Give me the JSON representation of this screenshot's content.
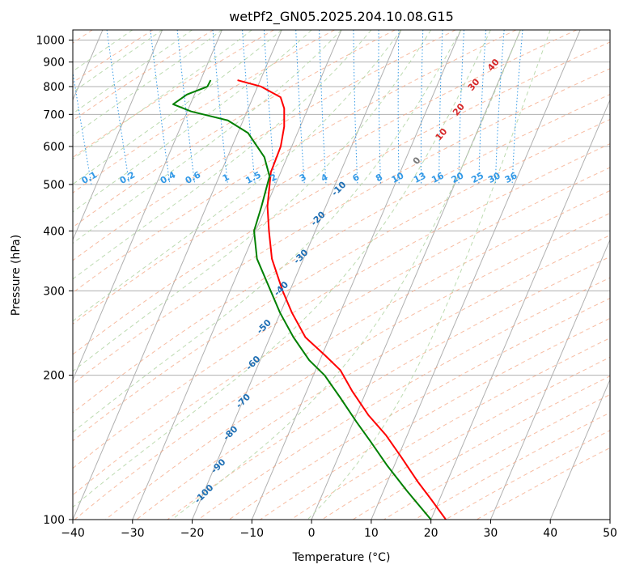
{
  "chart_data": {
    "type": "line",
    "diagram": "skew-T log-P",
    "title": "wetPf2_GN05.2025.204.10.08.G15",
    "xlabel": "Temperature (°C)",
    "ylabel": "Pressure (hPa)",
    "xlim": [
      -40,
      50
    ],
    "ylim": [
      1050,
      100
    ],
    "y_scale": "log",
    "grid": true,
    "x_ticks": [
      -40,
      -30,
      -20,
      -10,
      0,
      10,
      20,
      30,
      40,
      50
    ],
    "y_ticks": [
      100,
      200,
      300,
      400,
      500,
      600,
      700,
      800,
      900,
      1000
    ],
    "series": [
      {
        "role": "temperature",
        "color": "#ff0000",
        "points": [
          {
            "p": 825,
            "t": -16.0
          },
          {
            "p": 800,
            "t": -12.5
          },
          {
            "p": 760,
            "t": -10.0
          },
          {
            "p": 720,
            "t": -10.2
          },
          {
            "p": 660,
            "t": -11.5
          },
          {
            "p": 600,
            "t": -13.5
          },
          {
            "p": 530,
            "t": -17.0
          },
          {
            "p": 450,
            "t": -20.0
          },
          {
            "p": 400,
            "t": -21.5
          },
          {
            "p": 350,
            "t": -23.0
          },
          {
            "p": 300,
            "t": -23.5
          },
          {
            "p": 270,
            "t": -23.5
          },
          {
            "p": 240,
            "t": -23.0
          },
          {
            "p": 220,
            "t": -21.0
          },
          {
            "p": 205,
            "t": -19.5
          },
          {
            "p": 185,
            "t": -19.0
          },
          {
            "p": 165,
            "t": -18.0
          },
          {
            "p": 150,
            "t": -16.5
          },
          {
            "p": 135,
            "t": -15.5
          },
          {
            "p": 120,
            "t": -14.5
          },
          {
            "p": 110,
            "t": -13.5
          },
          {
            "p": 100,
            "t": -12.5
          }
        ]
      },
      {
        "role": "dewpoint",
        "color": "#008000",
        "points": [
          {
            "p": 825,
            "t": -20.5
          },
          {
            "p": 800,
            "t": -21.5
          },
          {
            "p": 770,
            "t": -25.5
          },
          {
            "p": 735,
            "t": -28.5
          },
          {
            "p": 710,
            "t": -26.0
          },
          {
            "p": 680,
            "t": -20.5
          },
          {
            "p": 640,
            "t": -18.0
          },
          {
            "p": 570,
            "t": -17.0
          },
          {
            "p": 520,
            "t": -17.5
          },
          {
            "p": 450,
            "t": -21.0
          },
          {
            "p": 400,
            "t": -24.0
          },
          {
            "p": 350,
            "t": -25.5
          },
          {
            "p": 310,
            "t": -25.5
          },
          {
            "p": 270,
            "t": -25.5
          },
          {
            "p": 240,
            "t": -25.0
          },
          {
            "p": 215,
            "t": -24.0
          },
          {
            "p": 200,
            "t": -22.5
          },
          {
            "p": 180,
            "t": -21.5
          },
          {
            "p": 160,
            "t": -20.5
          },
          {
            "p": 145,
            "t": -19.5
          },
          {
            "p": 130,
            "t": -18.5
          },
          {
            "p": 115,
            "t": -17.0
          },
          {
            "p": 100,
            "t": -15.0
          }
        ]
      }
    ],
    "dry_adiabat_labels": [
      -100,
      -90,
      -80,
      -70,
      -60,
      -50,
      -40,
      -30,
      -20,
      -10
    ],
    "mixing_ratio_labels": [
      "0.1",
      "0.2",
      "0.4",
      "0.6",
      "1",
      "1.5",
      "2",
      "3",
      "4",
      "6",
      "8",
      "10",
      "13",
      "16",
      "20",
      "25",
      "30",
      "36"
    ],
    "moist_adiabat_labels": [
      "0",
      "10",
      "20",
      "30",
      "40"
    ]
  }
}
